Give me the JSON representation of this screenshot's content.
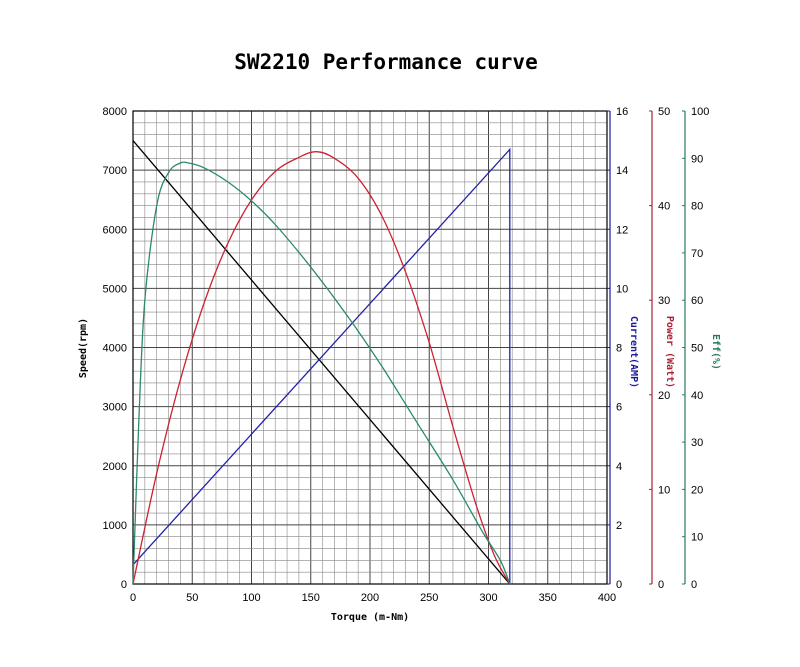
{
  "chart_data": {
    "type": "line",
    "title": "SW2210 Performance curve",
    "xlabel": "Torque (m-Nm)",
    "x_ticks": [
      0,
      50,
      100,
      150,
      200,
      250,
      300,
      350,
      400
    ],
    "xlim": [
      0,
      400
    ],
    "grid": true,
    "axes": {
      "speed": {
        "label": "Speed(rpm)",
        "side": "left",
        "range": [
          0,
          8000
        ],
        "ticks": [
          0,
          1000,
          2000,
          3000,
          4000,
          5000,
          6000,
          7000,
          8000
        ],
        "color": "#000000"
      },
      "current": {
        "label": "Current(AMP)",
        "side": "right",
        "range": [
          0,
          16
        ],
        "ticks": [
          0,
          2,
          4,
          6,
          8,
          10,
          12,
          14,
          16
        ],
        "color": "#1a1a99"
      },
      "power": {
        "label": "Power (Watt)",
        "side": "right",
        "range": [
          0,
          50
        ],
        "ticks": [
          0,
          10,
          20,
          30,
          40,
          50
        ],
        "color": "#aa2233"
      },
      "eff": {
        "label": "Eff(%)",
        "side": "right",
        "range": [
          0,
          100
        ],
        "ticks": [
          0,
          10,
          20,
          30,
          40,
          50,
          60,
          70,
          80,
          90,
          100
        ],
        "color": "#2a7a5a"
      }
    },
    "series": [
      {
        "axis": "speed",
        "color": "#000000",
        "x": [
          0,
          318
        ],
        "y": [
          7500,
          0
        ]
      },
      {
        "axis": "current",
        "color": "#2222aa",
        "x": [
          0,
          318,
          318
        ],
        "y": [
          0.65,
          14.7,
          0
        ]
      },
      {
        "axis": "power",
        "color": "#cc2233",
        "x": [
          0,
          20,
          40,
          60,
          80,
          100,
          120,
          140,
          155,
          170,
          190,
          210,
          230,
          250,
          270,
          290,
          305,
          318
        ],
        "y": [
          0,
          11.7,
          21.6,
          29.7,
          36.0,
          40.6,
          43.6,
          45.1,
          45.7,
          45.0,
          42.9,
          38.9,
          33.0,
          25.5,
          16.6,
          8.2,
          3.0,
          0
        ]
      },
      {
        "axis": "eff",
        "color": "#2a8a6a",
        "x": [
          0,
          5,
          10,
          20,
          30,
          40,
          47,
          60,
          80,
          100,
          120,
          150,
          180,
          210,
          240,
          270,
          295,
          310,
          318
        ],
        "y": [
          0,
          35,
          60,
          80,
          87,
          89,
          89,
          88,
          85,
          81,
          76,
          67,
          57,
          46,
          34,
          22,
          11,
          5,
          0
        ]
      }
    ]
  }
}
